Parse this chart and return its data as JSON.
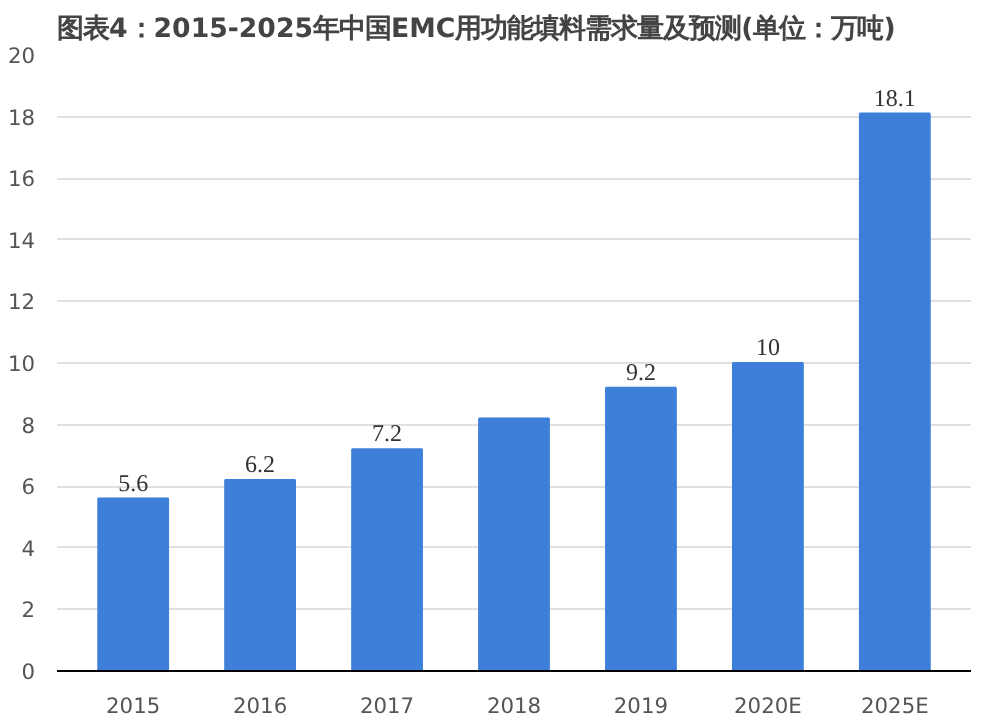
{
  "chart_data": {
    "type": "bar",
    "title": "图表4：2015-2025年中国EMC用功能填料需求量及预测(单位：万吨)",
    "categories": [
      "2015",
      "2016",
      "2017",
      "2018",
      "2019",
      "2020E",
      "2025E"
    ],
    "values": [
      5.6,
      6.2,
      7.2,
      8.2,
      9.2,
      10,
      18.1
    ],
    "value_labels": [
      "5.6",
      "6.2",
      "7.2",
      null,
      "9.2",
      "10",
      "18.1"
    ],
    "color": "#3d7fd9",
    "ylim": [
      0,
      20
    ],
    "yticks": [
      0,
      2,
      4,
      6,
      8,
      10,
      12,
      14,
      16,
      18,
      20
    ],
    "grid": "y"
  }
}
